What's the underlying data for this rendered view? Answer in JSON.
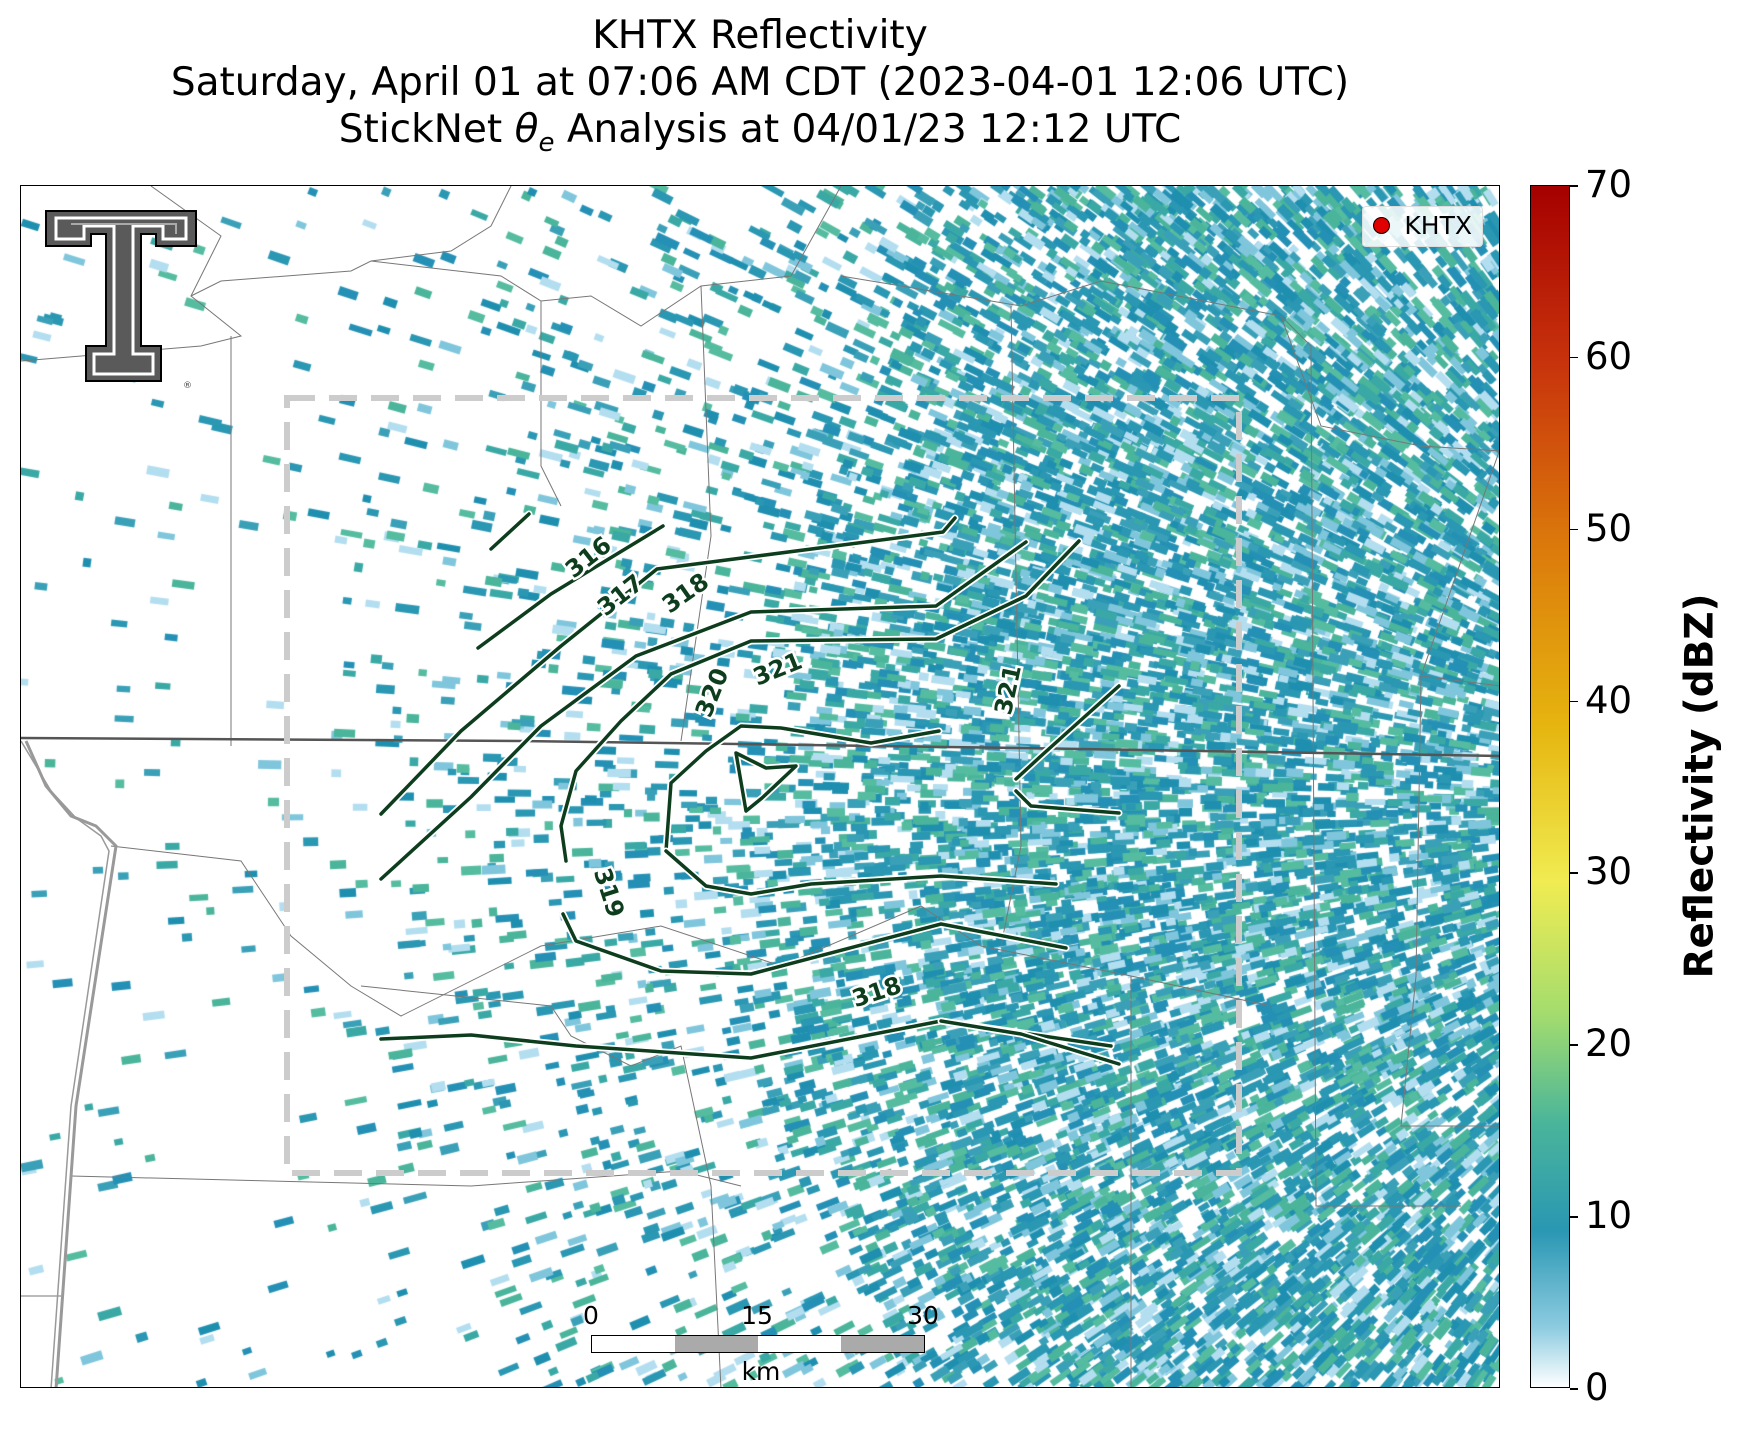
{
  "title": {
    "line1": "KHTX Reflectivity",
    "line2": "Saturday, April 01 at 07:06 AM CDT (2023-04-01 12:06 UTC)",
    "line3_prefix": "StickNet ",
    "line3_symbol": "θ",
    "line3_subscript": "e",
    "line3_suffix": " Analysis at 04/01/23 12:12 UTC"
  },
  "legend": {
    "label": "KHTX",
    "marker_color": "#e00000"
  },
  "logo": {
    "name": "Texas Tech Double T logo"
  },
  "scalebar": {
    "ticks": [
      "0",
      "15",
      "30"
    ],
    "unit": "km"
  },
  "colorbar": {
    "title": "Reflectivity (dBZ)",
    "min": 0,
    "max": 70,
    "ticks": [
      "0",
      "10",
      "20",
      "30",
      "40",
      "50",
      "60",
      "70"
    ],
    "colors": [
      "#ffffff",
      "#2a97b3",
      "#4ab59a",
      "#a3dc6e",
      "#f0ec52",
      "#e6b50f",
      "#db7a0b",
      "#c8340c",
      "#a50000"
    ]
  },
  "contours": {
    "color": "#0e3d1e",
    "labels": [
      "316",
      "317",
      "318",
      "320",
      "321",
      "321",
      "319",
      "318"
    ]
  }
}
